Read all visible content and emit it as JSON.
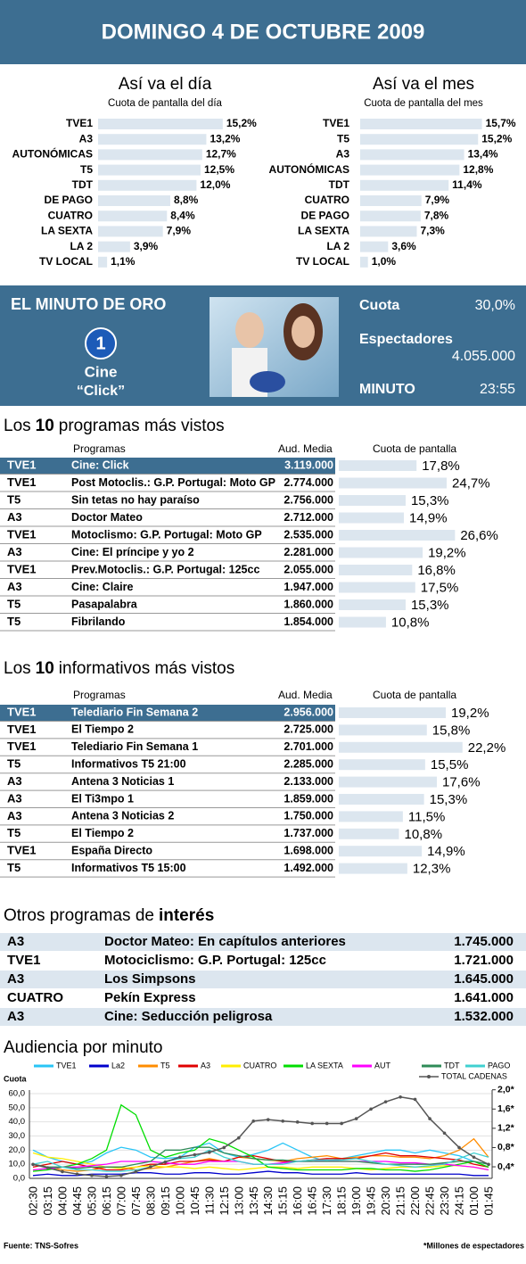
{
  "header": {
    "title": "DOMINGO 4 DE OCTUBRE 2009"
  },
  "minuto": {
    "title": "EL MINUTO DE ORO",
    "logo": "1",
    "genre": "Cine",
    "program": "“Click”",
    "stats": [
      {
        "label": "Cuota",
        "value": "30,0%"
      },
      {
        "label": "Espectadores",
        "value": "4.055.000"
      },
      {
        "label": "MINUTO",
        "value": "23:55"
      }
    ]
  },
  "otros": {
    "title": "Otros programas de",
    "title_emphasis": "interés",
    "rows": [
      [
        "A3",
        "Doctor Mateo: En capítulos anteriores",
        "1.745.000"
      ],
      [
        "TVE1",
        "Motociclismo: G.P. Portugal: 125cc",
        "1.721.000"
      ],
      [
        "A3",
        "Los Simpsons",
        "1.645.000"
      ],
      [
        "CUATRO",
        "Pekín Express",
        "1.641.000"
      ],
      [
        "A3",
        "Cine: Seducción peligrosa",
        "1.532.000"
      ]
    ]
  },
  "footer": {
    "source": "Fuente: TNS-Sofres",
    "note": "*Millones de espectadores"
  },
  "chart_data": [
    {
      "type": "bar",
      "title": "Así va el día",
      "subtitle": "Cuota de pantalla del día",
      "color": "#dce6ef",
      "categories": [
        "TVE1",
        "A3",
        "AUTONÓMICAS",
        "T5",
        "TDT",
        "DE PAGO",
        "CUATRO",
        "LA SEXTA",
        "LA 2",
        "TV LOCAL"
      ],
      "values": [
        15.2,
        13.2,
        12.7,
        12.5,
        12.0,
        8.8,
        8.4,
        7.9,
        3.9,
        1.1
      ],
      "value_labels": [
        "15,2%",
        "13,2%",
        "12,7%",
        "12,5%",
        "12,0%",
        "8,8%",
        "8,4%",
        "7,9%",
        "3,9%",
        "1,1%"
      ]
    },
    {
      "type": "bar",
      "title": "Así va el mes",
      "subtitle": "Cuota de pantalla del mes",
      "color": "#dce6ef",
      "categories": [
        "TVE1",
        "T5",
        "A3",
        "AUTONÓMICAS",
        "TDT",
        "CUATRO",
        "DE PAGO",
        "LA SEXTA",
        "LA 2",
        "TV LOCAL"
      ],
      "values": [
        15.7,
        15.2,
        13.4,
        12.8,
        11.4,
        7.9,
        7.8,
        7.3,
        3.6,
        1.0
      ],
      "value_labels": [
        "15,7%",
        "15,2%",
        "13,4%",
        "12,8%",
        "11,4%",
        "7,9%",
        "7,8%",
        "7,3%",
        "3,6%",
        "1,0%"
      ]
    },
    {
      "type": "table",
      "title_parts": [
        "Los",
        "10",
        "programas más vistos"
      ],
      "columns": [
        "Programas",
        "Aud. Media",
        "Cuota de pantalla"
      ],
      "color": "#dce6ef",
      "highlight_color": "#3d6e91",
      "channels": [
        "TVE1",
        "TVE1",
        "T5",
        "A3",
        "TVE1",
        "A3",
        "TVE1",
        "A3",
        "T5",
        "T5"
      ],
      "categories": [
        "Cine: Click",
        "Post Motoclis.: G.P. Portugal: Moto GP",
        "Sin tetas no hay paraíso",
        "Doctor Mateo",
        "Motoclismo: G.P. Portugal: Moto GP",
        "Cine: El príncipe y yo 2",
        "Prev.Motoclis.: G.P. Portugal: 125cc",
        "Cine: Claire",
        "Pasapalabra",
        "Fibrilando"
      ],
      "audience": [
        "3.119.000",
        "2.774.000",
        "2.756.000",
        "2.712.000",
        "2.535.000",
        "2.281.000",
        "2.055.000",
        "1.947.000",
        "1.860.000",
        "1.854.000"
      ],
      "values": [
        17.8,
        24.7,
        15.3,
        14.9,
        26.6,
        19.2,
        16.8,
        17.5,
        15.3,
        10.8
      ],
      "value_labels": [
        "17,8%",
        "24,7%",
        "15,3%",
        "14,9%",
        "26,6%",
        "19,2%",
        "16,8%",
        "17,5%",
        "15,3%",
        "10,8%"
      ]
    },
    {
      "type": "table",
      "title_parts": [
        "Los",
        "10",
        "informativos más vistos"
      ],
      "columns": [
        "Programas",
        "Aud. Media",
        "Cuota de pantalla"
      ],
      "color": "#dce6ef",
      "highlight_color": "#3d6e91",
      "channels": [
        "TVE1",
        "TVE1",
        "TVE1",
        "T5",
        "A3",
        "A3",
        "A3",
        "T5",
        "TVE1",
        "T5"
      ],
      "categories": [
        "Telediario Fin Semana 2",
        "El Tiempo 2",
        "Telediario Fin Semana 1",
        "Informativos T5 21:00",
        "Antena 3 Noticias 1",
        "El Ti3mpo 1",
        "Antena 3 Noticias 2",
        "El Tiempo 2",
        "España Directo",
        "Informativos T5 15:00"
      ],
      "audience": [
        "2.956.000",
        "2.725.000",
        "2.701.000",
        "2.285.000",
        "2.133.000",
        "1.859.000",
        "1.750.000",
        "1.737.000",
        "1.698.000",
        "1.492.000"
      ],
      "values": [
        19.2,
        15.8,
        22.2,
        15.5,
        17.6,
        15.3,
        11.5,
        10.8,
        14.9,
        12.3
      ],
      "value_labels": [
        "19,2%",
        "15,8%",
        "22,2%",
        "15,5%",
        "17,6%",
        "15,3%",
        "11,5%",
        "10,8%",
        "14,9%",
        "12,3%"
      ]
    },
    {
      "type": "line",
      "title": "Audiencia por minuto",
      "ylabel": "Cuota",
      "grid": true,
      "categories": [
        "02:30",
        "03:15",
        "04:00",
        "04:45",
        "05:30",
        "06:15",
        "07:00",
        "07:45",
        "08:30",
        "09:15",
        "10:00",
        "10:45",
        "11:30",
        "12:15",
        "13:00",
        "13:45",
        "14:30",
        "15:15",
        "16:00",
        "16:45",
        "17:30",
        "18:15",
        "19:00",
        "19:45",
        "20:30",
        "21:15",
        "22:00",
        "22:45",
        "23:30",
        "24:15",
        "01:00",
        "01:45"
      ],
      "ylim": [
        0,
        60
      ],
      "yticks": [
        {
          "value": 0,
          "label": "0,0"
        },
        {
          "value": 10,
          "label": "10,0"
        },
        {
          "value": 20,
          "label": "20,0"
        },
        {
          "value": 30,
          "label": "30,0"
        },
        {
          "value": 40,
          "label": "40,0"
        },
        {
          "value": 50,
          "label": "50,0"
        },
        {
          "value": 60,
          "label": "60,0"
        }
      ],
      "y2lim": [
        0.16,
        1.92
      ],
      "y2ticks": [
        {
          "value": 0.4,
          "label": "0,4*"
        },
        {
          "value": 0.8,
          "label": "0,8*"
        },
        {
          "value": 1.2,
          "label": "1,2*"
        },
        {
          "value": 1.6,
          "label": "1,6*"
        },
        {
          "value": 2.0,
          "label": "2,0*"
        }
      ],
      "series": [
        {
          "name": "TVE1",
          "color": "#29c5f6",
          "values": [
            20,
            15,
            12,
            10,
            12,
            18,
            22,
            20,
            15,
            14,
            15,
            22,
            25,
            18,
            15,
            17,
            20,
            25,
            20,
            15,
            12,
            14,
            16,
            18,
            20,
            20,
            18,
            20,
            18,
            16,
            12,
            10
          ]
        },
        {
          "name": "La2",
          "color": "#0000cc",
          "values": [
            2,
            3,
            2,
            2,
            3,
            3,
            3,
            4,
            4,
            3,
            3,
            4,
            4,
            3,
            3,
            4,
            5,
            4,
            4,
            3,
            3,
            3,
            4,
            3,
            3,
            3,
            3,
            3,
            3,
            3,
            2,
            2
          ]
        },
        {
          "name": "T5",
          "color": "#ff8c00",
          "values": [
            10,
            8,
            6,
            5,
            6,
            8,
            8,
            6,
            7,
            8,
            10,
            12,
            14,
            12,
            15,
            14,
            13,
            12,
            14,
            15,
            16,
            14,
            15,
            16,
            16,
            15,
            15,
            14,
            16,
            20,
            28,
            15
          ]
        },
        {
          "name": "A3",
          "color": "#e00000",
          "values": [
            8,
            10,
            12,
            10,
            8,
            6,
            6,
            8,
            10,
            10,
            12,
            12,
            13,
            12,
            15,
            16,
            14,
            12,
            12,
            13,
            14,
            14,
            14,
            16,
            18,
            16,
            16,
            15,
            14,
            13,
            10,
            8
          ]
        },
        {
          "name": "CUATRO",
          "color": "#ffee00",
          "values": [
            18,
            15,
            14,
            12,
            10,
            8,
            7,
            8,
            9,
            8,
            8,
            7,
            8,
            7,
            6,
            7,
            8,
            8,
            7,
            8,
            8,
            8,
            7,
            6,
            7,
            8,
            8,
            8,
            9,
            9,
            8,
            6
          ]
        },
        {
          "name": "LA SEXTA",
          "color": "#00dd00",
          "values": [
            5,
            6,
            8,
            10,
            14,
            20,
            52,
            45,
            20,
            15,
            18,
            20,
            28,
            25,
            20,
            15,
            8,
            7,
            6,
            6,
            6,
            6,
            7,
            7,
            6,
            6,
            5,
            6,
            8,
            10,
            12,
            8
          ]
        },
        {
          "name": "AUT",
          "color": "#ff00ff",
          "values": [
            6,
            7,
            8,
            8,
            9,
            10,
            12,
            12,
            12,
            11,
            10,
            10,
            12,
            12,
            12,
            10,
            10,
            11,
            12,
            12,
            13,
            12,
            12,
            12,
            12,
            11,
            11,
            10,
            10,
            9,
            8,
            6
          ]
        },
        {
          "name": "TDT",
          "color": "#2e8b57",
          "values": [
            10,
            8,
            8,
            7,
            8,
            8,
            8,
            10,
            12,
            20,
            20,
            22,
            22,
            18,
            16,
            14,
            13,
            13,
            12,
            12,
            12,
            12,
            12,
            11,
            10,
            10,
            10,
            10,
            11,
            12,
            12,
            10
          ]
        },
        {
          "name": "PAGO",
          "color": "#40d0d0",
          "values": [
            10,
            12,
            8,
            6,
            6,
            5,
            5,
            6,
            8,
            12,
            14,
            15,
            20,
            15,
            12,
            10,
            10,
            10,
            12,
            13,
            13,
            13,
            14,
            12,
            10,
            9,
            8,
            9,
            10,
            14,
            18,
            15
          ]
        },
        {
          "name": "TOTAL CADENAS",
          "color": "#555555",
          "axis": "y2",
          "marker": true,
          "values": [
            0.45,
            0.38,
            0.3,
            0.25,
            0.22,
            0.2,
            0.22,
            0.3,
            0.4,
            0.5,
            0.6,
            0.65,
            0.7,
            0.8,
            1.0,
            1.35,
            1.38,
            1.35,
            1.33,
            1.3,
            1.3,
            1.3,
            1.4,
            1.6,
            1.75,
            1.85,
            1.8,
            1.4,
            1.1,
            0.8,
            0.6,
            0.45
          ]
        }
      ]
    }
  ]
}
